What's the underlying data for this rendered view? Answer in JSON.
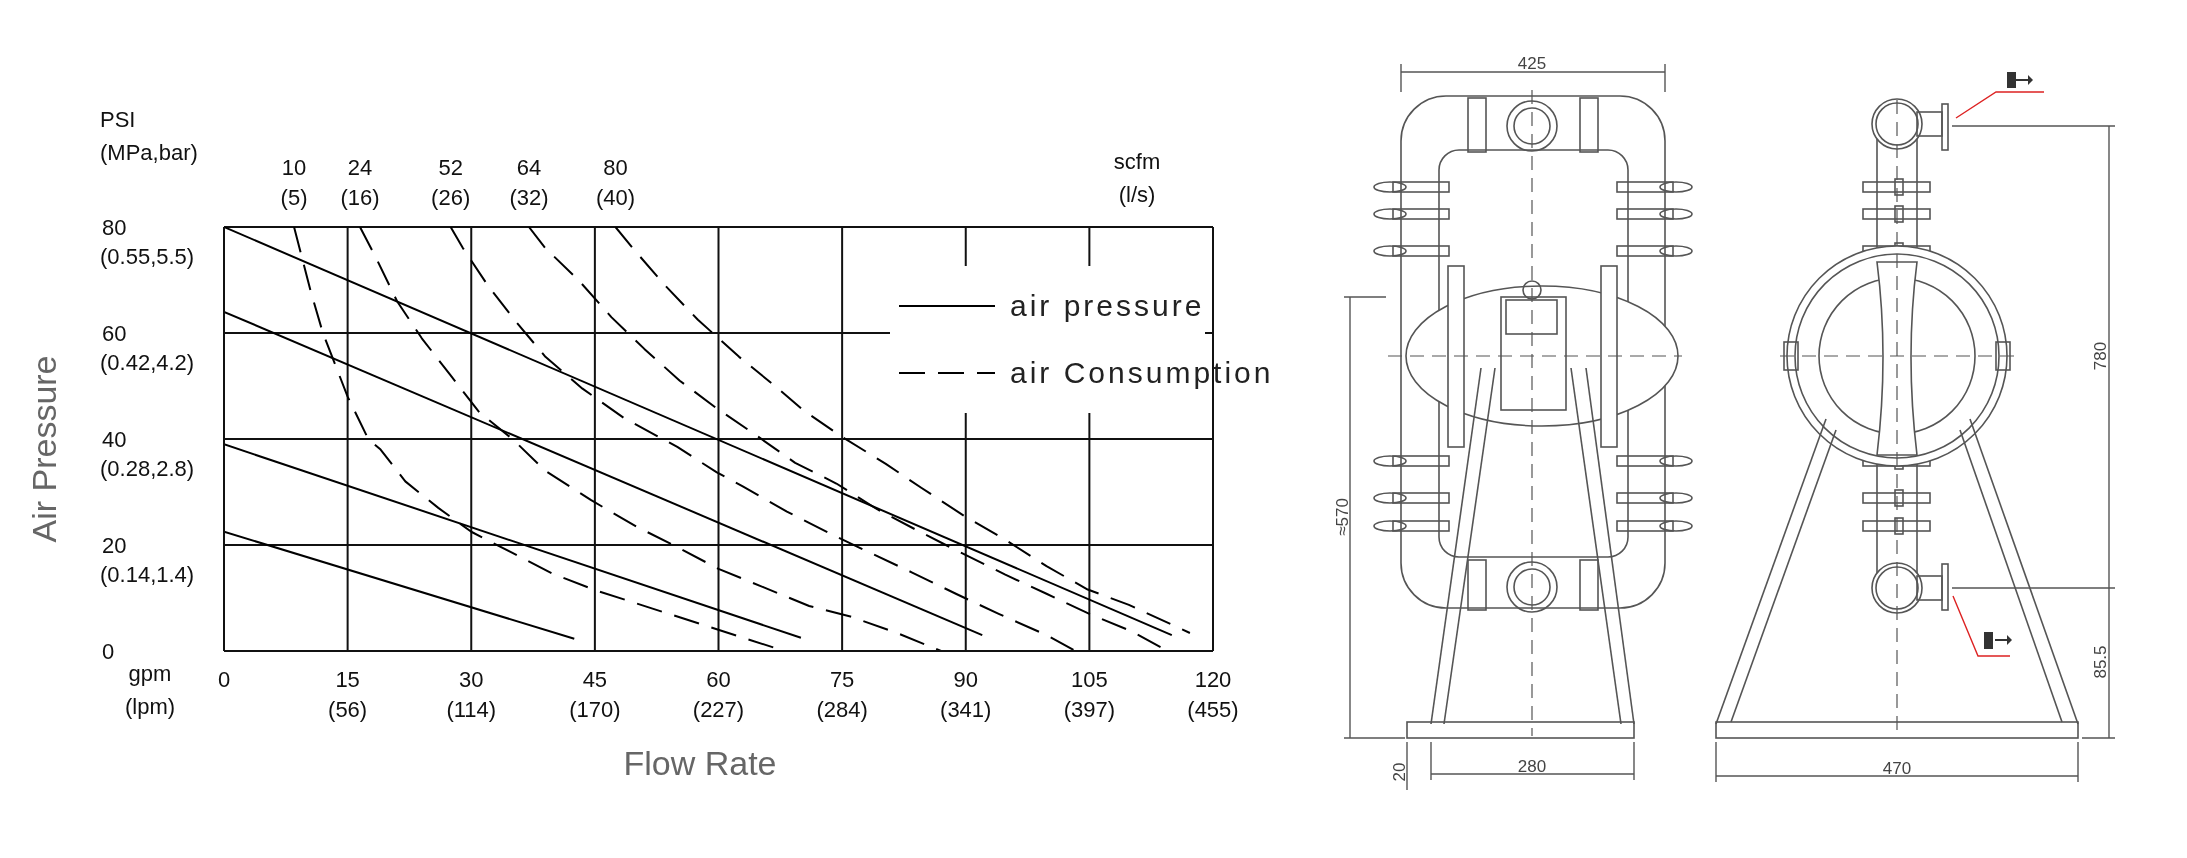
{
  "chart_data": [
    {
      "type": "line",
      "xlabel": "Flow Rate",
      "ylabel": "Air Pressure",
      "xlim": [
        0,
        120
      ],
      "xticks": [
        0,
        15,
        30,
        45,
        60,
        75,
        90,
        105,
        120
      ],
      "ylim": [
        0,
        80
      ],
      "yticks": [
        0,
        20,
        40,
        60,
        80
      ],
      "grid": true,
      "legend": "right",
      "series": [
        {
          "name": "air pressure",
          "color": "#000000",
          "line_style": "solid",
          "x": [
            0,
            115
          ],
          "values": [
            80,
            3
          ]
        },
        {
          "color": "#000000",
          "line_style": "solid",
          "x": [
            0,
            92
          ],
          "values": [
            64,
            3
          ]
        },
        {
          "color": "#000000",
          "line_style": "solid",
          "x": [
            0,
            70
          ],
          "values": [
            39,
            2.5
          ]
        },
        {
          "color": "#000000",
          "line_style": "solid",
          "x": [
            0,
            42.5
          ],
          "values": [
            22.5,
            2.3
          ]
        },
        {
          "name": "air Consumption",
          "color": "#000000",
          "line_style": "dashed",
          "x": [
            8.5,
            9.5,
            10.5,
            12,
            13.5,
            15,
            17.5,
            19,
            22,
            26,
            30,
            35,
            40,
            45,
            52,
            58,
            63,
            68
          ],
          "values": [
            80,
            74,
            68,
            60,
            54,
            48,
            40,
            38,
            32,
            27,
            22.5,
            18.5,
            14.5,
            11.5,
            8,
            5,
            2.5,
            0
          ]
        },
        {
          "color": "#000000",
          "line_style": "dashed",
          "x": [
            16.5,
            18.5,
            21,
            24,
            27.5,
            31,
            35,
            39,
            44.5,
            50,
            54.5,
            60,
            65.5,
            71,
            76,
            81.5,
            87
          ],
          "values": [
            80,
            74,
            66,
            59,
            52,
            45,
            40,
            34,
            28.5,
            23.5,
            20,
            15.5,
            12,
            8.5,
            6.5,
            3.5,
            0
          ]
        },
        {
          "color": "#000000",
          "line_style": "dashed",
          "x": [
            27.5,
            29,
            32,
            35.5,
            39,
            43.5,
            48.5,
            55,
            59.8,
            63,
            68.3,
            73.5,
            77.2,
            83.5,
            88.8,
            94,
            99.8,
            103.3
          ],
          "values": [
            80,
            76,
            69,
            62,
            55.5,
            49.5,
            44,
            38.5,
            33.7,
            31,
            26.3,
            22.2,
            19.4,
            14.8,
            10.8,
            7,
            3,
            0
          ]
        },
        {
          "color": "#000000",
          "line_style": "dashed",
          "x": [
            37,
            39,
            43,
            47,
            51,
            55.3,
            59.6,
            64.3,
            69.3,
            74.3,
            79.3,
            84.3,
            89.6,
            94.8,
            99.8,
            105,
            110,
            114.5
          ],
          "values": [
            80,
            76,
            70,
            63,
            57,
            51,
            46,
            41,
            35.5,
            31.6,
            26.7,
            22.6,
            18.4,
            14.4,
            10.8,
            7,
            3.8,
            0
          ]
        },
        {
          "color": "#000000",
          "line_style": "dashed",
          "x": [
            47.5,
            49.6,
            53.5,
            57.5,
            62.5,
            66.7,
            70.4,
            75,
            80.3,
            84.6,
            89.8,
            94.8,
            99.8,
            104.8,
            109.8,
            117.2
          ],
          "values": [
            80,
            76,
            69,
            62.5,
            55.5,
            50.2,
            45.3,
            40.4,
            35.3,
            30.8,
            25.5,
            21,
            16,
            11.6,
            8.7,
            3.4
          ]
        }
      ],
      "annotations": [
        "PSI\n(MPa,bar)",
        "gpm\n(lpm)",
        "scfm\n(l/s)",
        "(56)",
        "(114)",
        "(170)",
        "(227)",
        "(284)",
        "(341)",
        "(397)",
        "(455)",
        "(0.14,1.4)",
        "(0.28,2.8)",
        "(0.42,4.2)",
        "(0.55,5.5)",
        {
          "text": "10\n(5)",
          "x": 8.5,
          "y": 80
        },
        {
          "text": "24\n(16)",
          "x": 16.5,
          "y": 80
        },
        {
          "text": "52\n(26)",
          "x": 27.5,
          "y": 80
        },
        {
          "text": "64\n(32)",
          "x": 37,
          "y": 80
        },
        {
          "text": "80\n(40)",
          "x": 47.5,
          "y": 80
        }
      ]
    },
    {
      "type": "other",
      "annotations": [
        "425",
        "≈570",
        "280",
        "20",
        "470",
        "780",
        "85.5"
      ]
    }
  ]
}
